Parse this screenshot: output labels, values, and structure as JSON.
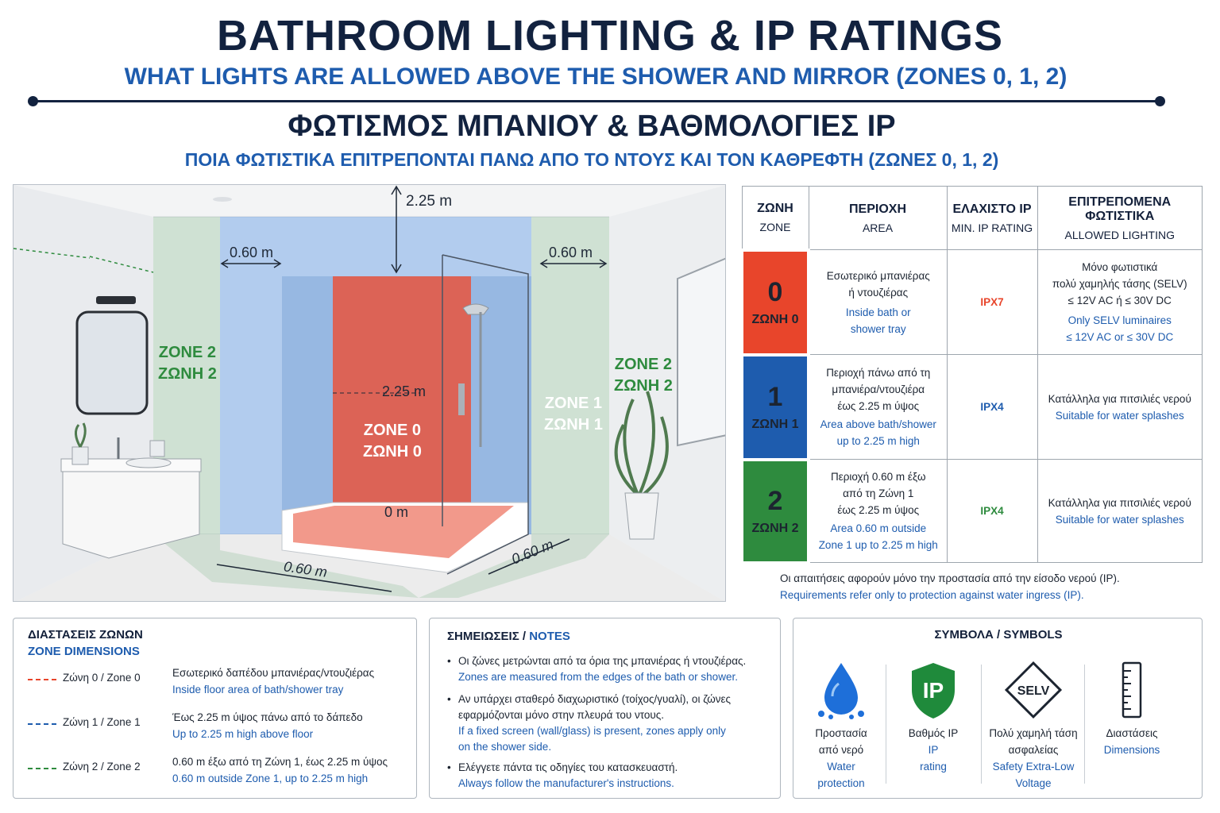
{
  "header": {
    "title": "BATHROOM LIGHTING & IP RATINGS",
    "subtitle": "WHAT LIGHTS ARE ALLOWED ABOVE THE SHOWER AND MIRROR (ZONES 0, 1, 2)",
    "title_gr": "ΦΩΤΙΣΜΟΣ ΜΠΑΝΙΟΥ & ΒΑΘΜΟΛΟΓΙΕΣ IP",
    "subtitle_gr": "ΠΟΙΑ ΦΩΤΙΣΤΙΚΑ ΕΠΙΤΡΕΠΟΝΤΑΙ ΠΑΝΩ ΑΠΟ ΤΟ ΝΤΟΥΣ ΚΑΙ ΤΟΝ ΚΑΘΡΕΦΤΗ (ΖΩΝΕΣ 0, 1, 2)"
  },
  "diagram": {
    "dim_top": "2.25 m",
    "dim_left": "0.60 m",
    "dim_right": "0.60 m",
    "dim_mid": "2.25 m",
    "dim_floor": "0 m",
    "dim_bottom_left": "0.60 m",
    "dim_bottom_right": "0.60 m",
    "zone0_en": "ZONE 0",
    "zone0_gr": "ΖΩΝΗ 0",
    "zone1_en": "ZONE 1",
    "zone1_gr": "ΖΩΝΗ 1",
    "zone2_left_en": "ZONE 2",
    "zone2_left_gr": "ΖΩΝΗ 2",
    "zone2_right_en": "ZONE 2",
    "zone2_right_gr": "ΖΩΝΗ 2"
  },
  "colors": {
    "zone0": "#e8452b",
    "zone1": "#1e5cae",
    "zone2": "#2e8b3e",
    "navy": "#12223f",
    "blue_text": "#1e5cae"
  },
  "table": {
    "headers": [
      {
        "gr": "ΖΩΝΗ",
        "en": "ZONE"
      },
      {
        "gr": "ΠΕΡΙΟΧΗ",
        "en": "AREA"
      },
      {
        "gr": "ΕΛΑΧΙΣΤΟ IP",
        "en": "MIN. IP RATING"
      },
      {
        "gr": "ΕΠΙΤΡΕΠΟΜΕΝΑ ΦΩΤΙΣΤΙΚΑ",
        "en": "ALLOWED LIGHTING"
      }
    ],
    "rows": [
      {
        "num": "0",
        "label": "ΖΩΝΗ 0",
        "area_gr": [
          "Εσωτερικό μπανιέρας",
          "ή ντουζιέρας"
        ],
        "area_en": [
          "Inside bath or",
          "shower tray"
        ],
        "ip": "IPX7",
        "allowed_gr": [
          "Μόνο φωτιστικά",
          "πολύ χαμηλής τάσης (SELV)",
          "≤ 12V AC ή ≤ 30V DC"
        ],
        "allowed_en": [
          "Only SELV luminaires",
          "≤ 12V AC or ≤ 30V DC"
        ]
      },
      {
        "num": "1",
        "label": "ΖΩΝΗ 1",
        "area_gr": [
          "Περιοχή πάνω από τη",
          "μπανιέρα/ντουζιέρα",
          "έως 2.25 m ύψος"
        ],
        "area_en": [
          "Area above bath/shower",
          "up to 2.25 m high"
        ],
        "ip": "IPX4",
        "allowed_gr": [
          "Κατάλληλα για πιτσιλιές νερού"
        ],
        "allowed_en": [
          "Suitable for water splashes"
        ]
      },
      {
        "num": "2",
        "label": "ΖΩΝΗ 2",
        "area_gr": [
          "Περιοχή 0.60 m έξω",
          "από τη Ζώνη 1",
          "έως 2.25 m ύψος"
        ],
        "area_en": [
          "Area 0.60 m outside",
          "Zone 1 up to 2.25 m high"
        ],
        "ip": "IPX4",
        "allowed_gr": [
          "Κατάλληλα για πιτσιλιές νερού"
        ],
        "allowed_en": [
          "Suitable for water splashes"
        ]
      }
    ],
    "note_gr": "Οι απαιτήσεις αφορούν μόνο την προστασία από την είσοδο νερού (IP).",
    "note_en": "Requirements refer only to protection against water ingress (IP)."
  },
  "dimensions_panel": {
    "title_gr": "ΔΙΑΣΤΑΣΕΙΣ ΖΩΝΩΝ",
    "title_en": "ZONE DIMENSIONS",
    "items": [
      {
        "label": "Ζώνη 0 / Zone 0",
        "desc_gr": "Εσωτερικό δαπέδου μπανιέρας/ντουζιέρας",
        "desc_en": "Inside floor area of bath/shower tray",
        "color": "#e8452b"
      },
      {
        "label": "Ζώνη 1 / Zone 1",
        "desc_gr": "Έως 2.25 m ύψος πάνω από το δάπεδο",
        "desc_en": "Up to 2.25 m high above floor",
        "color": "#1e5cae"
      },
      {
        "label": "Ζώνη 2 / Zone 2",
        "desc_gr": "0.60 m έξω από τη Ζώνη 1, έως 2.25 m ύψος",
        "desc_en": "0.60 m outside Zone 1, up to 2.25 m high",
        "color": "#2e8b3e"
      }
    ]
  },
  "notes_panel": {
    "title_gr": "ΣΗΜΕΙΩΣΕΙΣ / ",
    "title_en": "NOTES",
    "items": [
      {
        "gr": [
          "Οι ζώνες μετρώνται από τα όρια της μπανιέρας ή ντουζιέρας."
        ],
        "en": [
          "Zones are measured from the edges of the bath or shower."
        ]
      },
      {
        "gr": [
          "Αν υπάρχει σταθερό διαχωριστικό (τοίχος/γυαλί), οι ζώνες",
          "εφαρμόζονται μόνο στην πλευρά του ντους."
        ],
        "en": [
          "If a fixed screen (wall/glass) is present, zones apply only",
          "on the shower side."
        ]
      },
      {
        "gr": [
          "Ελέγγετε πάντα τις οδηγίες του κατασκευαστή."
        ],
        "en": [
          "Always follow the manufacturer's instructions."
        ]
      }
    ]
  },
  "symbols_panel": {
    "title": "ΣΥΜΒΟΛΑ / SYMBOLS",
    "items": [
      {
        "icon": "water-drop-icon",
        "glyph": "",
        "gr": [
          "Προστασία",
          "από νερό"
        ],
        "en": [
          "Water",
          "protection"
        ]
      },
      {
        "icon": "ip-shield-icon",
        "glyph": "IP",
        "gr": [
          "Βαθμός IP"
        ],
        "en": [
          "IP",
          "rating"
        ]
      },
      {
        "icon": "selv-diamond-icon",
        "glyph": "SELV",
        "gr": [
          "Πολύ χαμηλή τάση",
          "ασφαλείας"
        ],
        "en": [
          "Safety Extra-Low",
          "Voltage"
        ]
      },
      {
        "icon": "ruler-icon",
        "glyph": "",
        "gr": [
          "Διαστάσεις"
        ],
        "en": [
          "Dimensions"
        ]
      }
    ]
  }
}
